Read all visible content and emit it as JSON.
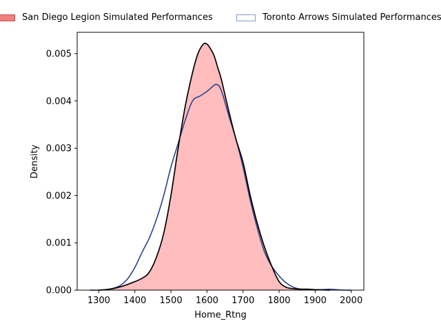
{
  "chart_data": {
    "type": "area",
    "title": "",
    "xlabel": "Home_Rtng",
    "ylabel": "Density",
    "xlim": [
      1240,
      2035
    ],
    "ylim": [
      0,
      0.00545
    ],
    "xticks": [
      1300,
      1400,
      1500,
      1600,
      1700,
      1800,
      1900,
      2000
    ],
    "yticks": [
      0.0,
      0.001,
      0.002,
      0.003,
      0.004,
      0.005
    ],
    "xtick_labels": [
      "1300",
      "1400",
      "1500",
      "1600",
      "1700",
      "1800",
      "1900",
      "2000"
    ],
    "ytick_labels": [
      "0.000",
      "0.001",
      "0.002",
      "0.003",
      "0.004",
      "0.005"
    ],
    "grid": false,
    "legend_position": "top",
    "series": [
      {
        "name": "San Diego Legion Simulated Performances",
        "style": "filled",
        "fill": "#ff9999",
        "stroke": "#000000",
        "x": [
          1300,
          1330,
          1360,
          1390,
          1420,
          1440,
          1460,
          1480,
          1500,
          1520,
          1540,
          1560,
          1575,
          1590,
          1600,
          1610,
          1620,
          1630,
          1640,
          1660,
          1680,
          1700,
          1720,
          1740,
          1760,
          1780,
          1800,
          1820,
          1840,
          1860,
          1880,
          1900,
          1920,
          1940
        ],
        "y": [
          0.0,
          2e-05,
          7e-05,
          0.00015,
          0.00025,
          0.00038,
          0.0007,
          0.0012,
          0.002,
          0.003,
          0.0039,
          0.0046,
          0.005,
          0.0052,
          0.0052,
          0.0051,
          0.00495,
          0.0047,
          0.00445,
          0.0038,
          0.0032,
          0.0027,
          0.002,
          0.0014,
          0.0009,
          0.0005,
          0.00018,
          6e-05,
          3e-05,
          2e-05,
          2e-05,
          1e-05,
          5e-06,
          0.0
        ]
      },
      {
        "name": "Toronto Arrows Simulated Performances",
        "style": "line",
        "fill": "#ffffff",
        "stroke": "#2a3f8c",
        "x": [
          1275,
          1300,
          1320,
          1340,
          1360,
          1380,
          1400,
          1420,
          1440,
          1460,
          1480,
          1500,
          1520,
          1540,
          1560,
          1580,
          1600,
          1615,
          1625,
          1635,
          1645,
          1660,
          1680,
          1700,
          1720,
          1740,
          1760,
          1780,
          1800,
          1820,
          1840,
          1860,
          1880,
          1900,
          1920,
          1940,
          1960,
          1980,
          2000
        ],
        "y": [
          0.0,
          0.0,
          1e-05,
          4e-05,
          0.0001,
          0.00024,
          0.00048,
          0.0008,
          0.0011,
          0.0015,
          0.002,
          0.0026,
          0.0031,
          0.0036,
          0.004,
          0.0041,
          0.0042,
          0.0043,
          0.00435,
          0.0043,
          0.0041,
          0.0037,
          0.0032,
          0.0026,
          0.0019,
          0.0013,
          0.0008,
          0.0005,
          0.0003,
          0.00015,
          6e-05,
          2e-05,
          1e-05,
          1e-05,
          1e-05,
          2e-05,
          1e-05,
          0.0,
          0.0
        ]
      }
    ]
  }
}
